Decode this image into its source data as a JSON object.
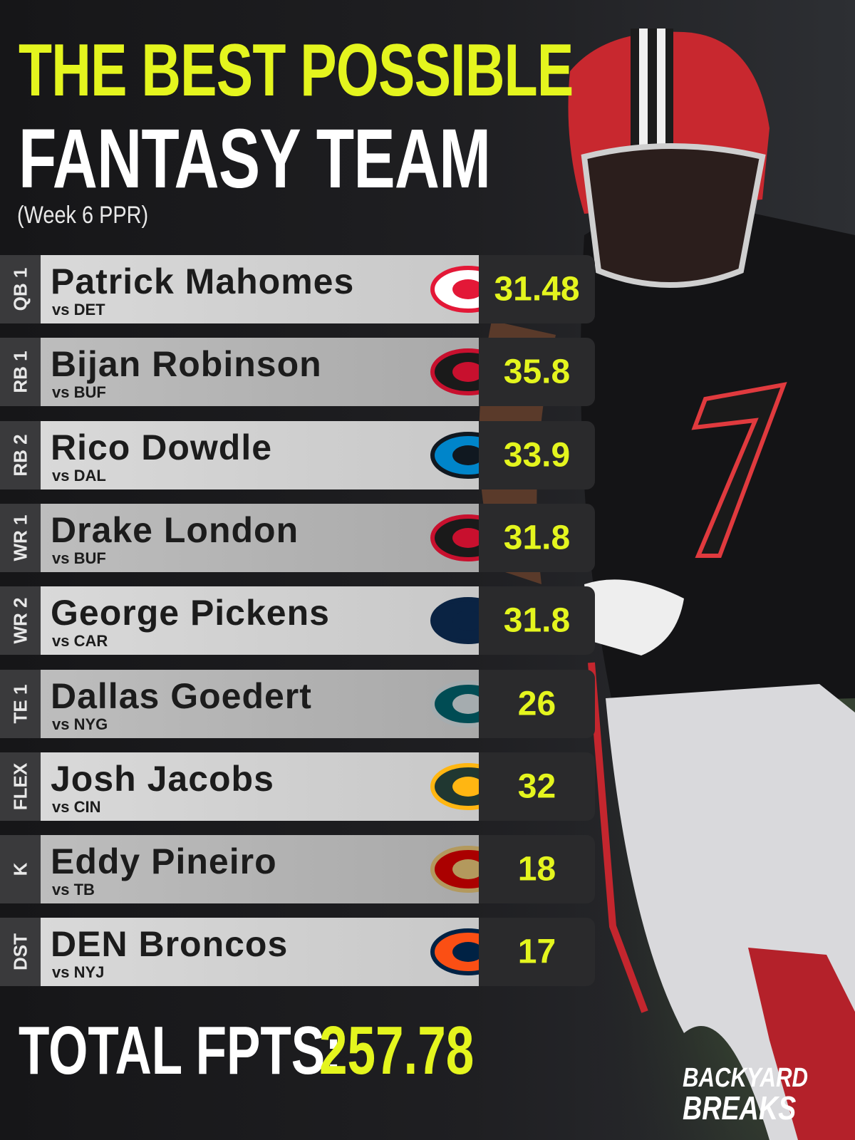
{
  "header": {
    "title_line1": "THE BEST POSSIBLE",
    "title_line2": "FANTASY TEAM",
    "subtitle": "(Week 6 PPR)"
  },
  "table": {
    "rows": [
      {
        "position": "QB 1",
        "player": "Patrick Mahomes",
        "opponent": "vs DET",
        "points": 31.48
      },
      {
        "position": "RB 1",
        "player": "Bijan Robinson",
        "opponent": "vs BUF",
        "points": 35.8
      },
      {
        "position": "RB 2",
        "player": "Rico Dowdle",
        "opponent": "vs DAL",
        "points": 33.9
      },
      {
        "position": "WR 1",
        "player": "Drake London",
        "opponent": "vs BUF",
        "points": 31.8
      },
      {
        "position": "WR 2",
        "player": "George Pickens",
        "opponent": "vs CAR",
        "points": 31.8
      },
      {
        "position": "TE 1",
        "player": "Dallas Goedert",
        "opponent": "vs NYG",
        "points": 26
      },
      {
        "position": "FLEX",
        "player": "Josh Jacobs",
        "opponent": "vs CIN",
        "points": 32
      },
      {
        "position": "K",
        "player": "Eddy Pineiro",
        "opponent": "vs TB",
        "points": 18
      },
      {
        "position": "DST",
        "player": "DEN Broncos",
        "opponent": "vs NYJ",
        "points": 17
      }
    ]
  },
  "total": {
    "label": "TOTAL FPTS:",
    "value": 257.78
  },
  "brand": {
    "line1": "BACKYARD",
    "line2": "BREAKS"
  }
}
